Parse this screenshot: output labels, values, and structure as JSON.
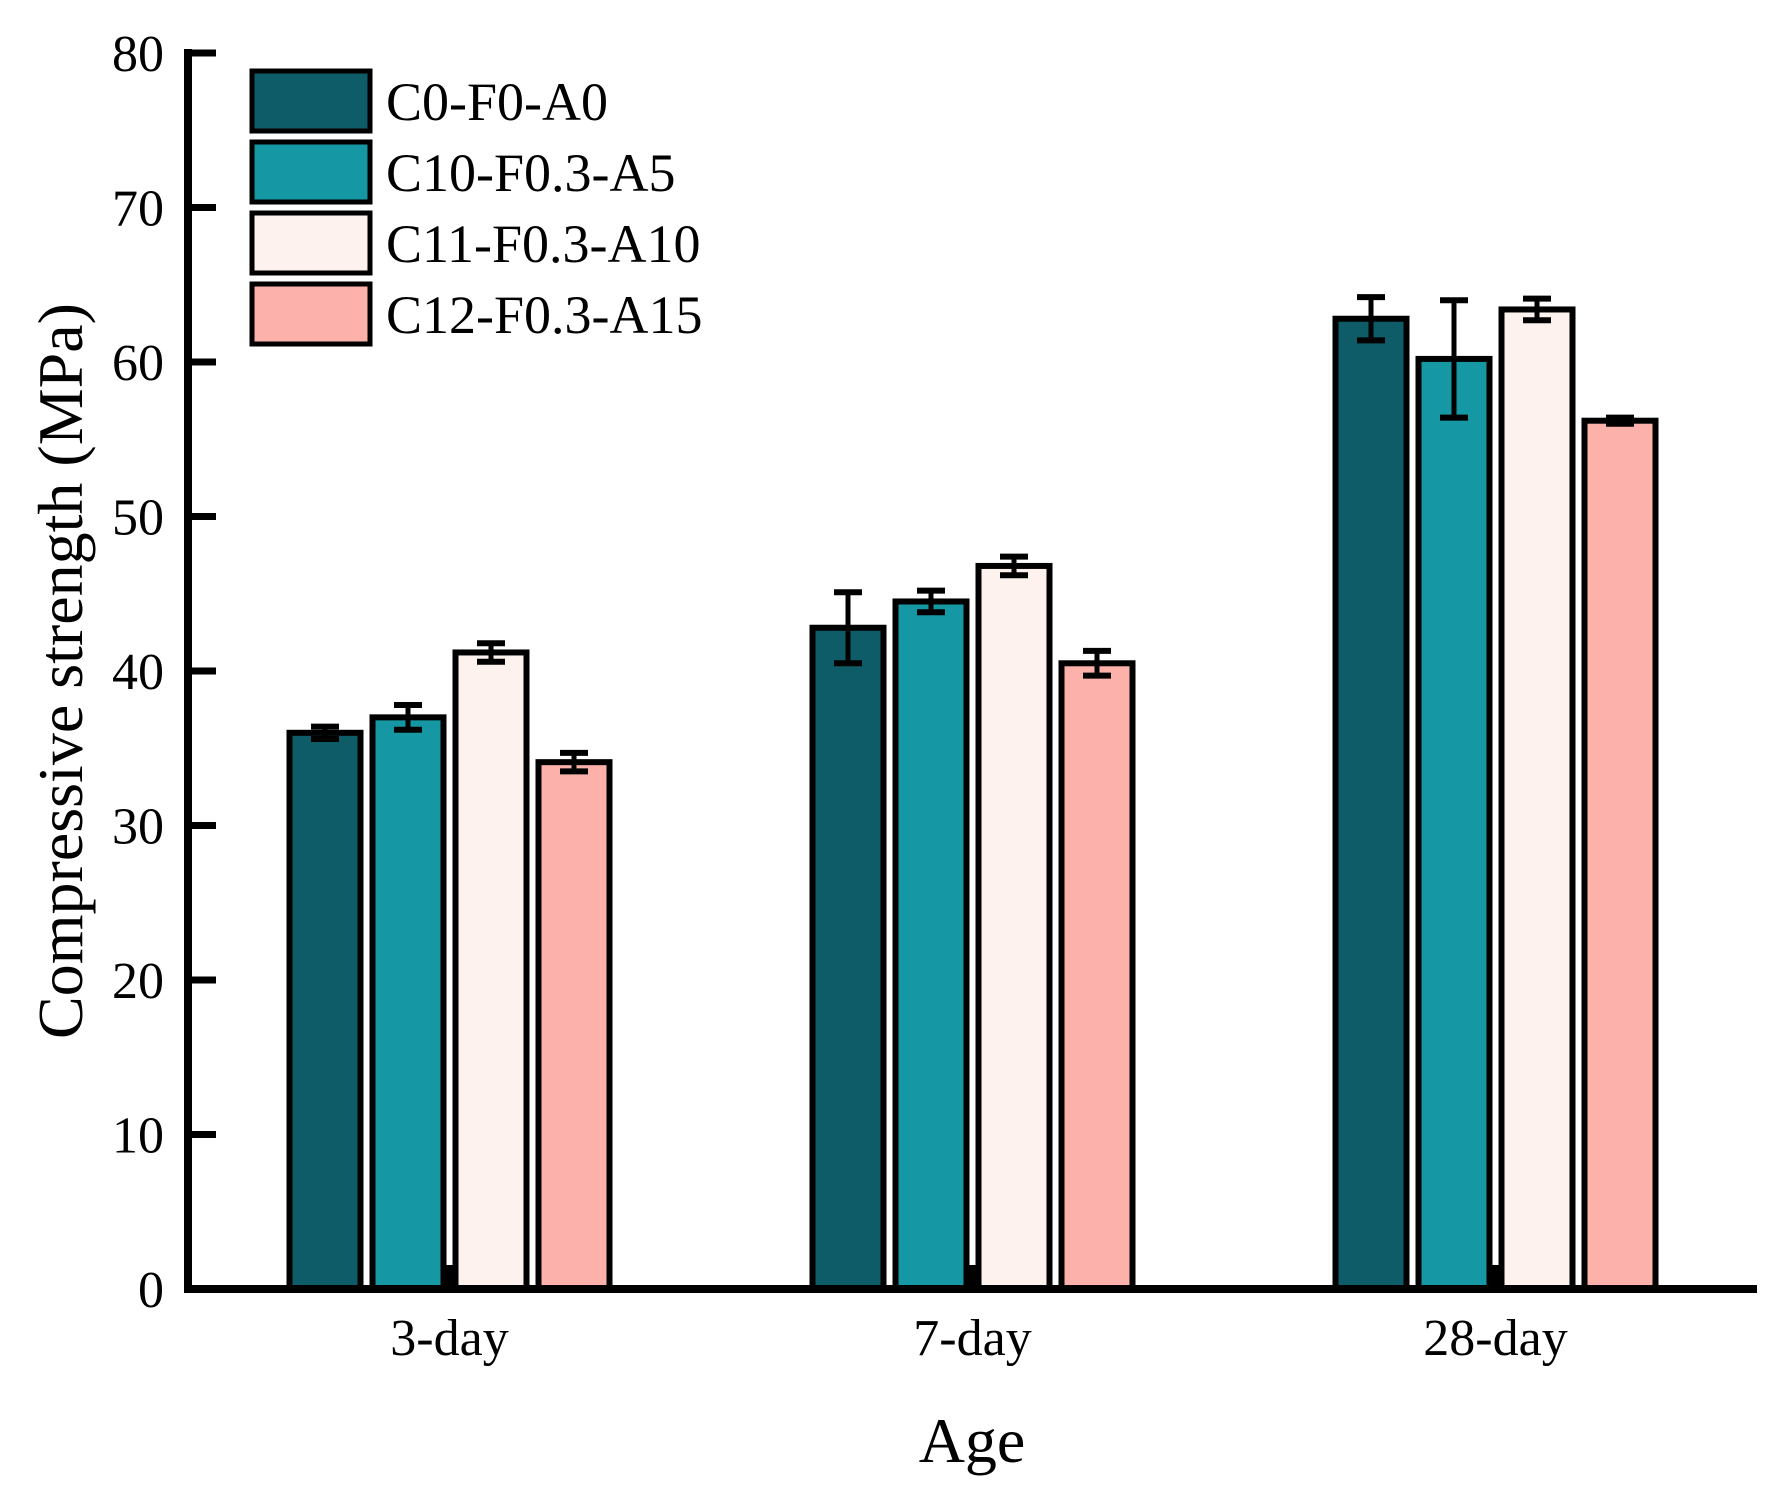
{
  "chart_data": {
    "type": "bar",
    "title": "",
    "xlabel": "Age",
    "ylabel": "Compressive strength (MPa)",
    "ylim": [
      0,
      80
    ],
    "ytick_step": 10,
    "grid": false,
    "legend_position": "top-left",
    "bar_outline_color": "#000000",
    "axis_color": "#000000",
    "categories": [
      "3-day",
      "7-day",
      "28-day"
    ],
    "series": [
      {
        "name": "C0-F0-A0",
        "color": "#0E5C68",
        "values": [
          36.0,
          42.8,
          62.8
        ],
        "errors": [
          0.4,
          2.3,
          1.4
        ]
      },
      {
        "name": "C10-F0.3-A5",
        "color": "#1697A4",
        "values": [
          37.0,
          44.5,
          60.2
        ],
        "errors": [
          0.8,
          0.7,
          3.8
        ]
      },
      {
        "name": "C11-F0.3-A10",
        "color": "#FDF2EE",
        "values": [
          41.2,
          46.8,
          63.4
        ],
        "errors": [
          0.6,
          0.6,
          0.7
        ]
      },
      {
        "name": "C12-F0.3-A15",
        "color": "#FCB2AB",
        "values": [
          34.1,
          40.5,
          56.2
        ],
        "errors": [
          0.6,
          0.8,
          0.2
        ]
      }
    ]
  }
}
